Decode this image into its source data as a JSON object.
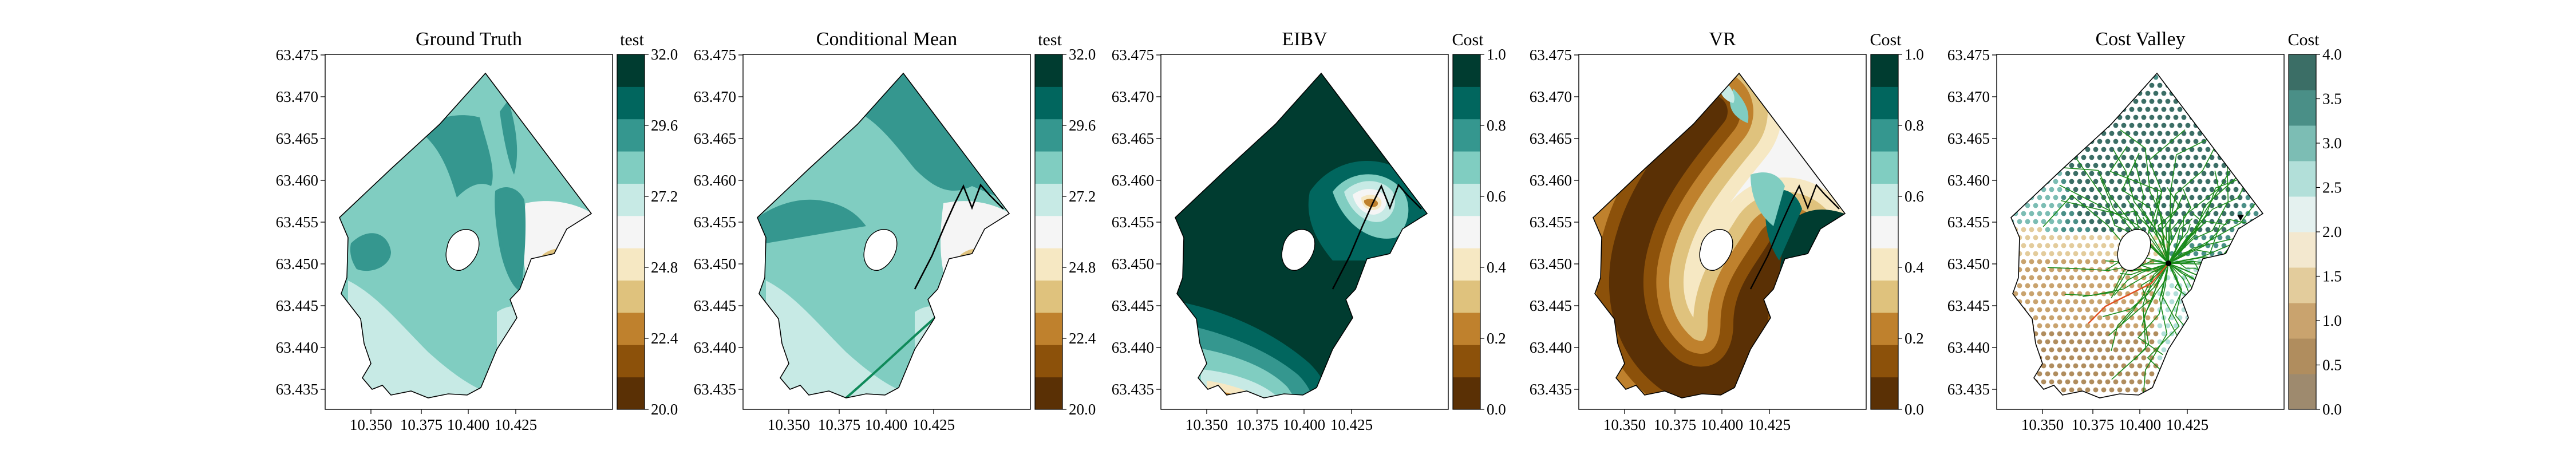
{
  "chart_data": [
    {
      "type": "contour",
      "title": "Ground Truth",
      "colorbar_label": "test",
      "colorbar_ticks": [
        "20.0",
        "22.4",
        "24.8",
        "27.2",
        "29.6",
        "32.0"
      ],
      "xticks": [
        "10.350",
        "10.375",
        "10.400",
        "10.425"
      ],
      "yticks": [
        "63.435",
        "63.440",
        "63.445",
        "63.450",
        "63.455",
        "63.460",
        "63.465",
        "63.470",
        "63.475"
      ],
      "colors": [
        "#5a3005",
        "#8c510a",
        "#bf812d",
        "#dfc27d",
        "#f6e8c3",
        "#f5f5f5",
        "#c7eae5",
        "#80cdc1",
        "#35978f",
        "#01665e",
        "#003c30"
      ],
      "xlim": [
        10.335,
        10.44
      ],
      "ylim": [
        63.432,
        63.476
      ]
    },
    {
      "type": "contour",
      "title": "Conditional Mean",
      "colorbar_label": "test",
      "colorbar_ticks": [
        "20.0",
        "22.4",
        "24.8",
        "27.2",
        "29.6",
        "32.0"
      ],
      "xticks": [
        "10.350",
        "10.375",
        "10.400",
        "10.425"
      ],
      "yticks": [
        "63.435",
        "63.440",
        "63.445",
        "63.450",
        "63.455",
        "63.460",
        "63.465",
        "63.470",
        "63.475"
      ],
      "colors": [
        "#5a3005",
        "#8c510a",
        "#bf812d",
        "#dfc27d",
        "#f6e8c3",
        "#f5f5f5",
        "#c7eae5",
        "#80cdc1",
        "#35978f",
        "#01665e",
        "#003c30"
      ],
      "xlim": [
        10.335,
        10.44
      ],
      "ylim": [
        63.432,
        63.476
      ]
    },
    {
      "type": "contour",
      "title": "EIBV",
      "colorbar_label": "Cost",
      "colorbar_ticks": [
        "0.0",
        "0.2",
        "0.4",
        "0.6",
        "0.8",
        "1.0"
      ],
      "xticks": [
        "10.350",
        "10.375",
        "10.400",
        "10.425"
      ],
      "yticks": [
        "63.435",
        "63.440",
        "63.445",
        "63.450",
        "63.455",
        "63.460",
        "63.465",
        "63.470",
        "63.475"
      ],
      "colors": [
        "#5a3005",
        "#8c510a",
        "#bf812d",
        "#dfc27d",
        "#f6e8c3",
        "#f5f5f5",
        "#c7eae5",
        "#80cdc1",
        "#35978f",
        "#01665e",
        "#003c30"
      ],
      "xlim": [
        10.335,
        10.44
      ],
      "ylim": [
        63.432,
        63.476
      ]
    },
    {
      "type": "contour",
      "title": "VR",
      "colorbar_label": "Cost",
      "colorbar_ticks": [
        "0.0",
        "0.2",
        "0.4",
        "0.6",
        "0.8",
        "1.0"
      ],
      "xticks": [
        "10.350",
        "10.375",
        "10.400",
        "10.425"
      ],
      "yticks": [
        "63.435",
        "63.440",
        "63.445",
        "63.450",
        "63.455",
        "63.460",
        "63.465",
        "63.470",
        "63.475"
      ],
      "colors": [
        "#5a3005",
        "#8c510a",
        "#bf812d",
        "#dfc27d",
        "#f6e8c3",
        "#f5f5f5",
        "#c7eae5",
        "#80cdc1",
        "#35978f",
        "#01665e",
        "#003c30"
      ],
      "xlim": [
        10.335,
        10.44
      ],
      "ylim": [
        63.432,
        63.476
      ]
    },
    {
      "type": "scatter",
      "title": "Cost Valley",
      "colorbar_label": "Cost",
      "colorbar_ticks": [
        "0.0",
        "0.5",
        "1.0",
        "1.5",
        "2.0",
        "2.5",
        "3.0",
        "3.5",
        "4.0"
      ],
      "xticks": [
        "10.350",
        "10.375",
        "10.400",
        "10.425"
      ],
      "yticks": [
        "63.435",
        "63.440",
        "63.445",
        "63.450",
        "63.455",
        "63.460",
        "63.465",
        "63.470",
        "63.475"
      ],
      "colors": [
        "#9e8a6e",
        "#b08d5e",
        "#c9a36e",
        "#e3cc9c",
        "#f3e8cf",
        "#e4f1ef",
        "#b2dfd9",
        "#7cbdb4",
        "#4a8f87",
        "#3b6e66"
      ],
      "xlim": [
        10.335,
        10.44
      ],
      "ylim": [
        63.432,
        63.476
      ]
    }
  ]
}
